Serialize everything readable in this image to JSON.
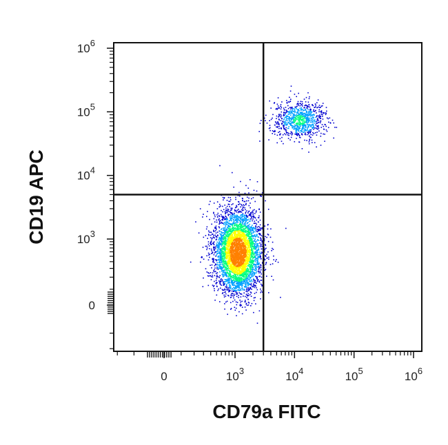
{
  "chart_data": {
    "type": "scatter",
    "title": "",
    "xlabel": "CD79a FITC",
    "ylabel": "CD19 APC",
    "scale": "biexponential",
    "xlim": [
      "-700",
      "1000000"
    ],
    "ylim": [
      "-500",
      "1000000"
    ],
    "x_ticks": [
      "0",
      "10^3",
      "10^4",
      "10^5",
      "10^6"
    ],
    "y_ticks": [
      "0",
      "10^3",
      "10^4",
      "10^5",
      "10^6"
    ],
    "gates": {
      "vertical_line_x": 3000,
      "horizontal_line_y": 5000
    },
    "populations": [
      {
        "description": "CD79a- CD19- cluster",
        "center_x": 1100,
        "center_y": 600,
        "approx_events": 4500,
        "density": "high"
      },
      {
        "description": "CD79a+ CD19+ cluster",
        "center_x": 12000,
        "center_y": 75000,
        "approx_events": 900,
        "density": "medium"
      }
    ],
    "color_map": [
      "#0000d0",
      "#00a0ff",
      "#00ff80",
      "#ffff00",
      "#ff8000",
      "#ff0000"
    ],
    "grid": false
  }
}
